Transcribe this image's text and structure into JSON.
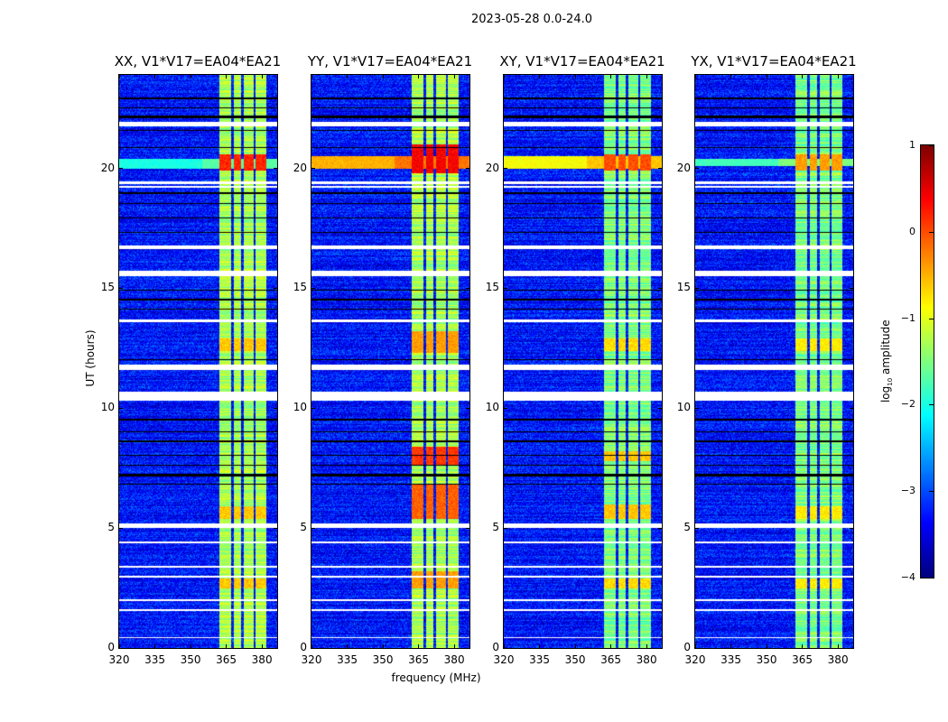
{
  "figure": {
    "suptitle": "2023-05-28 0.0-24.0",
    "ylabel": "UT (hours)",
    "xlabel": "frequency (MHz)",
    "colorbar_label_prefix": "log",
    "colorbar_label_sub": "10",
    "colorbar_label_suffix": " amplitude"
  },
  "chart_data": {
    "type": "heatmap",
    "xlim": [
      320,
      386.4
    ],
    "ylim": [
      0,
      23.9
    ],
    "x_ticks": [
      "320",
      "335",
      "350",
      "365",
      "380"
    ],
    "x_tick_values": [
      320,
      335,
      350,
      365,
      380
    ],
    "y_ticks": [
      "0",
      "5",
      "10",
      "15",
      "20"
    ],
    "y_tick_values": [
      0,
      5,
      10,
      15,
      20
    ],
    "colorbar": {
      "range": [
        -4,
        1
      ],
      "ticks": [
        "1",
        "0",
        "−1",
        "−2",
        "−3",
        "−4"
      ],
      "tick_values": [
        1,
        0,
        -1,
        -2,
        -3,
        -4
      ],
      "colormap": "jet"
    },
    "background_level": -3.3,
    "rfi_channels_mhz": [
      [
        362,
        366.9
      ],
      [
        368,
        371.4
      ],
      [
        372.5,
        376.6
      ],
      [
        377.4,
        381.9
      ]
    ],
    "rfi_level": -1.3,
    "flagged_hours_white": [
      [
        21.75,
        21.95
      ],
      [
        19.35,
        19.45
      ],
      [
        19.2,
        19.28
      ],
      [
        16.65,
        16.8
      ],
      [
        15.5,
        15.75
      ],
      [
        13.6,
        13.7
      ],
      [
        11.6,
        11.8
      ],
      [
        10.3,
        10.7
      ],
      [
        5.0,
        5.2
      ],
      [
        4.35,
        4.45
      ],
      [
        3.35,
        3.42
      ],
      [
        2.95,
        3.02
      ],
      [
        1.95,
        2.02
      ],
      [
        1.55,
        1.62
      ],
      [
        0.4,
        0.47
      ]
    ],
    "flagged_hours_black": [
      [
        22.9,
        22.95
      ],
      [
        22.5,
        22.55
      ],
      [
        22.1,
        22.2
      ],
      [
        21.55,
        21.6
      ],
      [
        20.85,
        20.9
      ],
      [
        18.95,
        19.0
      ],
      [
        18.5,
        18.55
      ],
      [
        17.9,
        17.95
      ],
      [
        17.3,
        17.35
      ],
      [
        14.9,
        14.95
      ],
      [
        14.5,
        14.55
      ],
      [
        14.1,
        14.15
      ],
      [
        12.0,
        12.05
      ],
      [
        9.5,
        9.55
      ],
      [
        9.0,
        9.05
      ],
      [
        8.6,
        8.65
      ],
      [
        8.0,
        8.05
      ],
      [
        7.6,
        7.65
      ],
      [
        7.15,
        7.25
      ],
      [
        6.8,
        6.85
      ]
    ],
    "panels": [
      {
        "title": "XX, V1*V17=EA04*EA21",
        "events": [
          {
            "hours": [
              19.9,
              20.6
            ],
            "level": 0.2
          },
          {
            "hours": [
              12.4,
              12.9
            ],
            "level": -0.6
          },
          {
            "hours": [
              5.4,
              5.9
            ],
            "level": -0.6
          },
          {
            "hours": [
              2.5,
              2.9
            ],
            "level": -0.6
          }
        ],
        "broadband_hours": [
          20.0,
          20.4
        ],
        "broadband_level": -2.0
      },
      {
        "title": "YY, V1*V17=EA04*EA21",
        "events": [
          {
            "hours": [
              19.8,
              21.0
            ],
            "level": 0.4
          },
          {
            "hours": [
              12.3,
              13.2
            ],
            "level": -0.4
          },
          {
            "hours": [
              7.6,
              8.4
            ],
            "level": 0.1
          },
          {
            "hours": [
              5.4,
              6.8
            ],
            "level": -0.1
          },
          {
            "hours": [
              2.5,
              3.2
            ],
            "level": -0.4
          }
        ],
        "broadband_hours": [
          20.0,
          20.5
        ],
        "broadband_level": -0.5
      },
      {
        "title": "XY, V1*V17=EA04*EA21",
        "events": [
          {
            "hours": [
              19.9,
              20.6
            ],
            "level": 0.0
          },
          {
            "hours": [
              12.4,
              12.9
            ],
            "level": -0.7
          },
          {
            "hours": [
              7.8,
              8.2
            ],
            "level": -0.6
          },
          {
            "hours": [
              5.4,
              6.0
            ],
            "level": -0.6
          },
          {
            "hours": [
              2.5,
              2.9
            ],
            "level": -0.7
          }
        ],
        "broadband_hours": [
          20.0,
          20.5
        ],
        "broadband_level": -0.9
      },
      {
        "title": "YX, V1*V17=EA04*EA21",
        "events": [
          {
            "hours": [
              19.9,
              20.6
            ],
            "level": -0.4
          },
          {
            "hours": [
              12.4,
              12.9
            ],
            "level": -0.8
          },
          {
            "hours": [
              5.4,
              5.9
            ],
            "level": -0.8
          },
          {
            "hours": [
              2.5,
              2.9
            ],
            "level": -0.8
          }
        ],
        "broadband_hours": [
          20.1,
          20.4
        ],
        "broadband_level": -1.8
      }
    ]
  }
}
